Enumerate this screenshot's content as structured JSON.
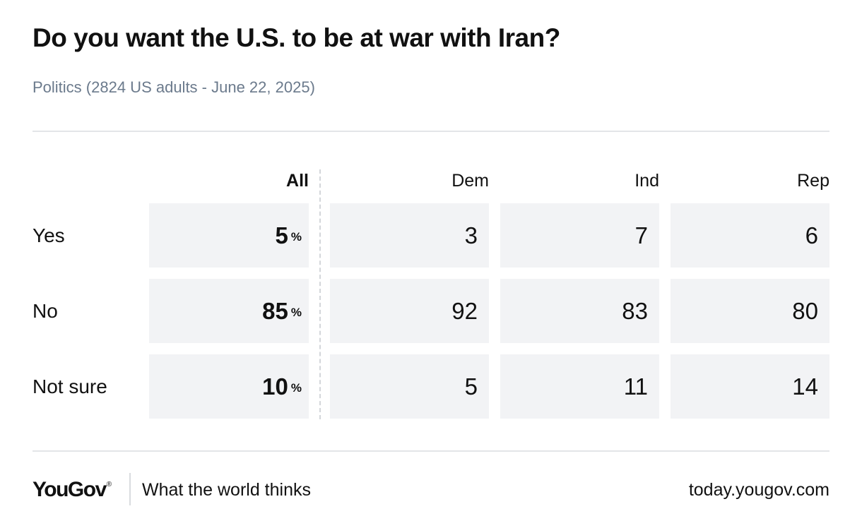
{
  "title": "Do you want the U.S. to be at war with Iran?",
  "subtitle": "Politics (2824 US adults - June 22, 2025)",
  "percent_sign": "%",
  "chart_data": {
    "type": "table",
    "title": "Do you want the U.S. to be at war with Iran?",
    "subtitle": "Politics (2824 US adults - June 22, 2025)",
    "columns": [
      "All",
      "Dem",
      "Ind",
      "Rep"
    ],
    "rows": [
      {
        "label": "Yes",
        "all": "5",
        "dem": "3",
        "ind": "7",
        "rep": "6"
      },
      {
        "label": "No",
        "all": "85",
        "dem": "92",
        "ind": "83",
        "rep": "80"
      },
      {
        "label": "Not sure",
        "all": "10",
        "dem": "5",
        "ind": "11",
        "rep": "14"
      }
    ]
  },
  "footer": {
    "logo": "YouGov",
    "logo_mark": "®",
    "tagline": "What the world thinks",
    "url": "today.yougov.com"
  },
  "colors": {
    "cell_background": "#f2f3f5",
    "subtitle_text": "#6b7a8c",
    "rule": "#e3e5e8",
    "text": "#111111"
  }
}
